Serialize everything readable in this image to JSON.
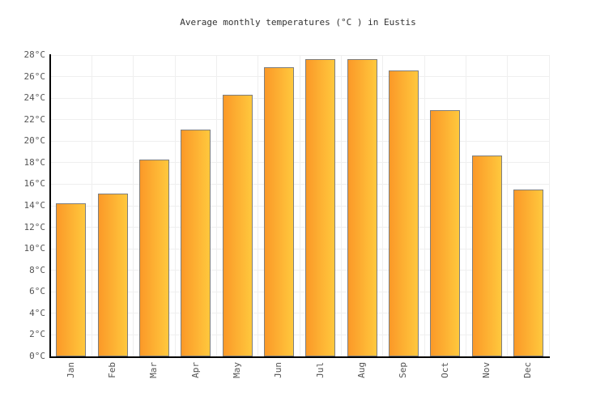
{
  "title": "Average monthly temperatures (°C ) in Eustis",
  "chart_data": {
    "type": "bar",
    "title": "Average monthly temperatures (°C ) in Eustis",
    "categories": [
      "Jan",
      "Feb",
      "Mar",
      "Apr",
      "May",
      "Jun",
      "Jul",
      "Aug",
      "Sep",
      "Oct",
      "Nov",
      "Dec"
    ],
    "values": [
      14.2,
      15.1,
      18.3,
      21.1,
      24.3,
      26.9,
      27.6,
      27.6,
      26.6,
      22.9,
      18.7,
      15.5
    ],
    "xlabel": "",
    "ylabel": "",
    "ylim": [
      0,
      28
    ],
    "ytick_step": 2,
    "ytick_suffix": "°C",
    "grid": true,
    "legend": false,
    "colors": {
      "bar_gradient_left": "#fb9928",
      "bar_gradient_right": "#ffc83d",
      "bar_border": "#7e7e7e",
      "gridline": "#efefef",
      "axis": "#000000",
      "tick_label": "#555555",
      "title": "#333333"
    }
  }
}
